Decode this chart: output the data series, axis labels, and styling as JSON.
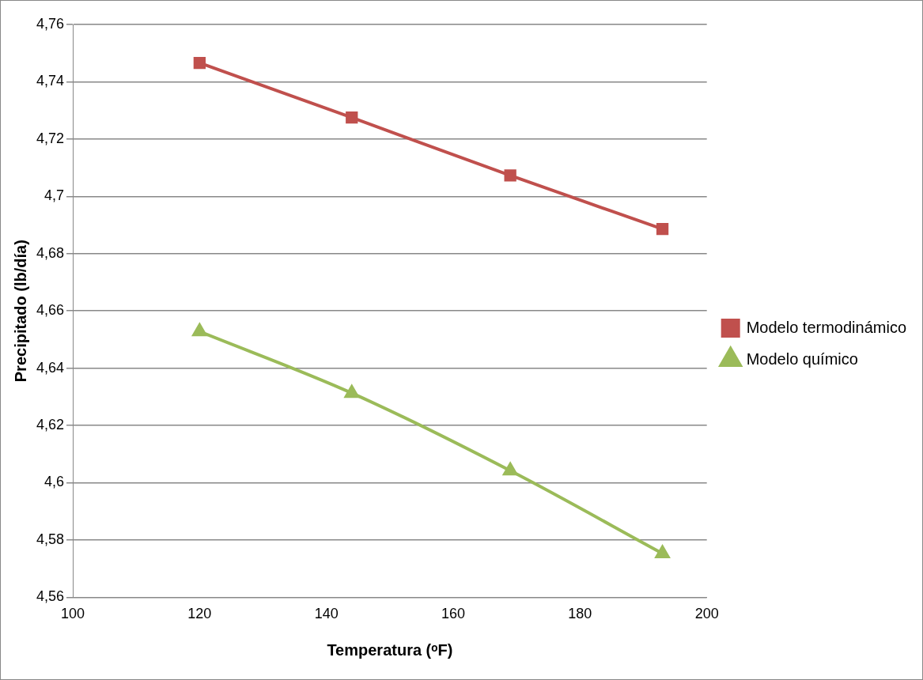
{
  "chart_data": {
    "type": "line",
    "xlabel": "Temperatura (ᵒF)",
    "ylabel": "Precipitado (lb/día)",
    "x": [
      120,
      144,
      169,
      193
    ],
    "series": [
      {
        "name": "Modelo termodinámico",
        "color": "#c0504d",
        "marker": "square",
        "values": [
          4.7466,
          4.7275,
          4.7073,
          4.6886
        ]
      },
      {
        "name": "Modelo químico",
        "color": "#9bbb59",
        "marker": "triangle",
        "values": [
          4.6528,
          4.6313,
          4.6042,
          4.5753
        ]
      }
    ],
    "xlim": [
      100,
      200
    ],
    "xticks": [
      100,
      120,
      140,
      160,
      180,
      200
    ],
    "ylim": [
      4.56,
      4.76
    ],
    "yticks": [
      {
        "value": 4.56,
        "label": "4,56"
      },
      {
        "value": 4.58,
        "label": "4,58"
      },
      {
        "value": 4.6,
        "label": "4,6"
      },
      {
        "value": 4.62,
        "label": "4,62"
      },
      {
        "value": 4.64,
        "label": "4,64"
      },
      {
        "value": 4.66,
        "label": "4,66"
      },
      {
        "value": 4.68,
        "label": "4,68"
      },
      {
        "value": 4.7,
        "label": "4,7"
      },
      {
        "value": 4.72,
        "label": "4,72"
      },
      {
        "value": 4.74,
        "label": "4,74"
      },
      {
        "value": 4.76,
        "label": "4,76"
      }
    ],
    "grid": "y",
    "legend": "right"
  }
}
